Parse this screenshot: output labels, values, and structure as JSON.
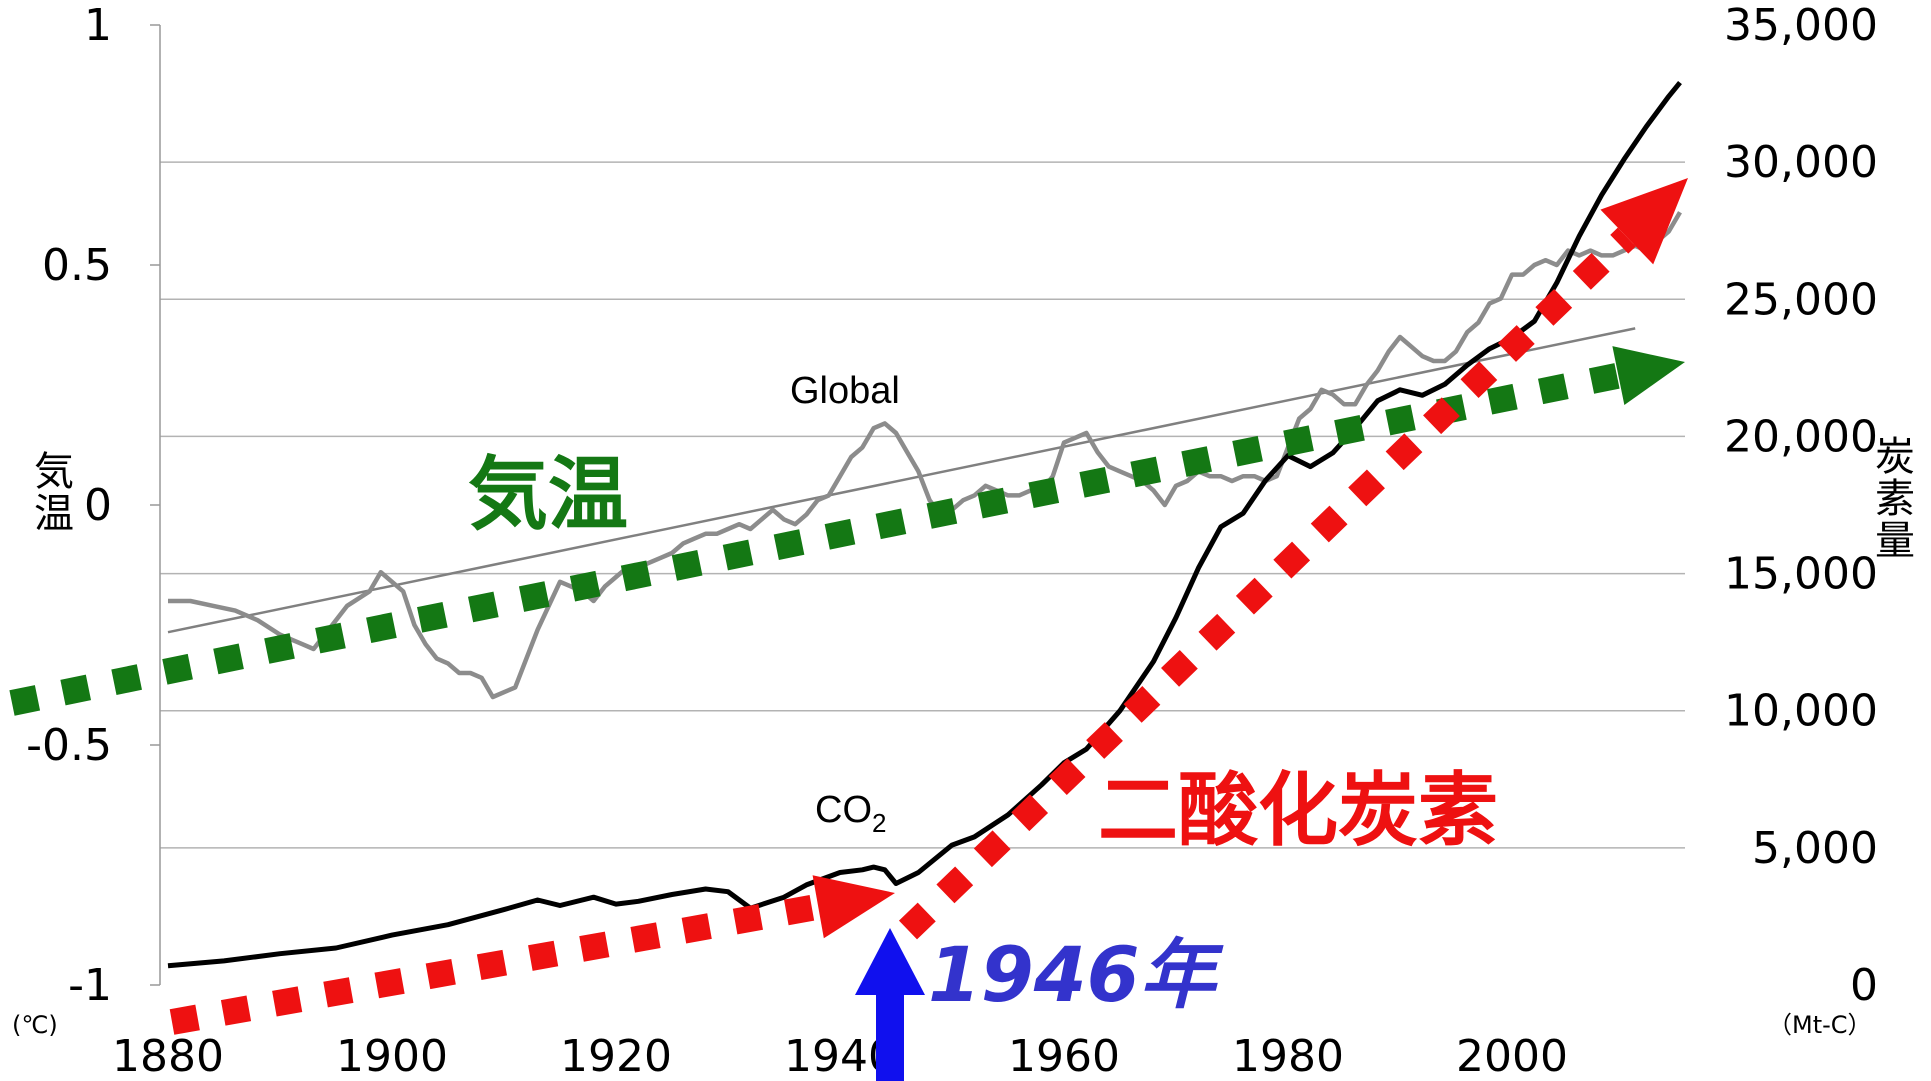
{
  "chart_data": {
    "type": "line",
    "x_range": [
      1880,
      2015
    ],
    "x_ticks": [
      "1880",
      "1900",
      "1920",
      "1940",
      "1960",
      "1980",
      "2000"
    ],
    "y_left": {
      "range": [
        -1,
        1
      ],
      "ticks": [
        "1",
        "0.5",
        "0",
        "-0.5",
        "-1"
      ],
      "label": "気温",
      "unit": "(℃)"
    },
    "y_right": {
      "range": [
        0,
        35000
      ],
      "ticks": [
        "35,000",
        "30,000",
        "25,000",
        "20,000",
        "15,000",
        "10,000",
        "5,000",
        "0"
      ],
      "label": "炭素量",
      "unit": "（Mt-C）"
    },
    "grid": "horizontal",
    "colors": {
      "temperature": "#8c8c8c",
      "trendline": "#808080",
      "co2": "#000000",
      "temp_arrow": "#147814",
      "co2_arrow": "#ee1111",
      "year_arrow": "#1010ee",
      "year_text": "#3333cc"
    },
    "series": [
      {
        "name": "Global",
        "axis": "left",
        "points": [
          [
            1880,
            -0.2
          ],
          [
            1882,
            -0.2
          ],
          [
            1884,
            -0.21
          ],
          [
            1886,
            -0.22
          ],
          [
            1888,
            -0.24
          ],
          [
            1890,
            -0.27
          ],
          [
            1891,
            -0.28
          ],
          [
            1892,
            -0.29
          ],
          [
            1893,
            -0.3
          ],
          [
            1894,
            -0.27
          ],
          [
            1896,
            -0.21
          ],
          [
            1898,
            -0.18
          ],
          [
            1899,
            -0.14
          ],
          [
            1901,
            -0.18
          ],
          [
            1902,
            -0.25
          ],
          [
            1903,
            -0.29
          ],
          [
            1904,
            -0.32
          ],
          [
            1905,
            -0.33
          ],
          [
            1906,
            -0.35
          ],
          [
            1907,
            -0.35
          ],
          [
            1908,
            -0.36
          ],
          [
            1909,
            -0.4
          ],
          [
            1910,
            -0.39
          ],
          [
            1911,
            -0.38
          ],
          [
            1912,
            -0.32
          ],
          [
            1913,
            -0.26
          ],
          [
            1914,
            -0.21
          ],
          [
            1915,
            -0.16
          ],
          [
            1916,
            -0.17
          ],
          [
            1917,
            -0.18
          ],
          [
            1918,
            -0.2
          ],
          [
            1919,
            -0.17
          ],
          [
            1920,
            -0.15
          ],
          [
            1921,
            -0.13
          ],
          [
            1922,
            -0.13
          ],
          [
            1923,
            -0.12
          ],
          [
            1924,
            -0.11
          ],
          [
            1925,
            -0.1
          ],
          [
            1926,
            -0.08
          ],
          [
            1927,
            -0.07
          ],
          [
            1928,
            -0.06
          ],
          [
            1929,
            -0.06
          ],
          [
            1930,
            -0.05
          ],
          [
            1931,
            -0.04
          ],
          [
            1932,
            -0.05
          ],
          [
            1933,
            -0.03
          ],
          [
            1934,
            -0.01
          ],
          [
            1935,
            -0.03
          ],
          [
            1936,
            -0.04
          ],
          [
            1937,
            -0.02
          ],
          [
            1938,
            0.01
          ],
          [
            1939,
            0.02
          ],
          [
            1940,
            0.06
          ],
          [
            1941,
            0.1
          ],
          [
            1942,
            0.12
          ],
          [
            1943,
            0.16
          ],
          [
            1944,
            0.17
          ],
          [
            1945,
            0.15
          ],
          [
            1946,
            0.11
          ],
          [
            1947,
            0.07
          ],
          [
            1948,
            0.01
          ],
          [
            1949,
            -0.02
          ],
          [
            1950,
            -0.01
          ],
          [
            1951,
            0.01
          ],
          [
            1952,
            0.02
          ],
          [
            1953,
            0.04
          ],
          [
            1954,
            0.03
          ],
          [
            1955,
            0.02
          ],
          [
            1956,
            0.02
          ],
          [
            1957,
            0.03
          ],
          [
            1958,
            0.03
          ],
          [
            1959,
            0.06
          ],
          [
            1960,
            0.13
          ],
          [
            1961,
            0.14
          ],
          [
            1962,
            0.15
          ],
          [
            1963,
            0.11
          ],
          [
            1964,
            0.08
          ],
          [
            1965,
            0.07
          ],
          [
            1966,
            0.06
          ],
          [
            1967,
            0.05
          ],
          [
            1968,
            0.03
          ],
          [
            1969,
            0.0
          ],
          [
            1970,
            0.04
          ],
          [
            1971,
            0.05
          ],
          [
            1972,
            0.07
          ],
          [
            1973,
            0.06
          ],
          [
            1974,
            0.06
          ],
          [
            1975,
            0.05
          ],
          [
            1976,
            0.06
          ],
          [
            1977,
            0.06
          ],
          [
            1978,
            0.05
          ],
          [
            1979,
            0.06
          ],
          [
            1980,
            0.12
          ],
          [
            1981,
            0.18
          ],
          [
            1982,
            0.2
          ],
          [
            1983,
            0.24
          ],
          [
            1984,
            0.23
          ],
          [
            1985,
            0.21
          ],
          [
            1986,
            0.21
          ],
          [
            1987,
            0.25
          ],
          [
            1988,
            0.28
          ],
          [
            1989,
            0.32
          ],
          [
            1990,
            0.35
          ],
          [
            1991,
            0.33
          ],
          [
            1992,
            0.31
          ],
          [
            1993,
            0.3
          ],
          [
            1994,
            0.3
          ],
          [
            1995,
            0.32
          ],
          [
            1996,
            0.36
          ],
          [
            1997,
            0.38
          ],
          [
            1998,
            0.42
          ],
          [
            1999,
            0.43
          ],
          [
            2000,
            0.48
          ],
          [
            2001,
            0.48
          ],
          [
            2002,
            0.5
          ],
          [
            2003,
            0.51
          ],
          [
            2004,
            0.5
          ],
          [
            2005,
            0.53
          ],
          [
            2006,
            0.52
          ],
          [
            2007,
            0.53
          ],
          [
            2008,
            0.52
          ],
          [
            2009,
            0.52
          ],
          [
            2010,
            0.53
          ],
          [
            2011,
            0.54
          ],
          [
            2012,
            0.53
          ],
          [
            2013,
            0.55
          ],
          [
            2014,
            0.57
          ],
          [
            2015,
            0.61
          ]
        ]
      },
      {
        "name": "CO2",
        "axis": "right",
        "points": [
          [
            1880,
            700
          ],
          [
            1885,
            880
          ],
          [
            1890,
            1140
          ],
          [
            1895,
            1350
          ],
          [
            1900,
            1820
          ],
          [
            1905,
            2200
          ],
          [
            1910,
            2750
          ],
          [
            1913,
            3100
          ],
          [
            1915,
            2900
          ],
          [
            1918,
            3200
          ],
          [
            1920,
            2950
          ],
          [
            1922,
            3050
          ],
          [
            1925,
            3300
          ],
          [
            1928,
            3500
          ],
          [
            1930,
            3400
          ],
          [
            1932,
            2800
          ],
          [
            1935,
            3200
          ],
          [
            1937,
            3650
          ],
          [
            1940,
            4100
          ],
          [
            1942,
            4200
          ],
          [
            1943,
            4300
          ],
          [
            1944,
            4200
          ],
          [
            1945,
            3700
          ],
          [
            1947,
            4100
          ],
          [
            1950,
            5100
          ],
          [
            1952,
            5400
          ],
          [
            1955,
            6200
          ],
          [
            1958,
            7300
          ],
          [
            1960,
            8100
          ],
          [
            1962,
            8600
          ],
          [
            1965,
            10000
          ],
          [
            1968,
            11800
          ],
          [
            1970,
            13400
          ],
          [
            1972,
            15200
          ],
          [
            1974,
            16700
          ],
          [
            1976,
            17200
          ],
          [
            1978,
            18400
          ],
          [
            1980,
            19300
          ],
          [
            1982,
            18900
          ],
          [
            1984,
            19400
          ],
          [
            1986,
            20300
          ],
          [
            1988,
            21300
          ],
          [
            1990,
            21700
          ],
          [
            1992,
            21500
          ],
          [
            1994,
            21900
          ],
          [
            1996,
            22600
          ],
          [
            1998,
            23200
          ],
          [
            2000,
            23600
          ],
          [
            2002,
            24200
          ],
          [
            2004,
            25600
          ],
          [
            2006,
            27300
          ],
          [
            2008,
            28800
          ],
          [
            2010,
            30100
          ],
          [
            2012,
            31300
          ],
          [
            2014,
            32400
          ],
          [
            2015,
            32900
          ]
        ]
      }
    ],
    "trendline": {
      "axis": "left",
      "points": [
        [
          1880,
          -0.265
        ],
        [
          2011,
          0.368
        ]
      ]
    },
    "annotations": {
      "global_label": "Global",
      "co2_label": "CO",
      "co2_subscript": "2",
      "temp_arrow_label": "気温",
      "co2_arrow_label": "二酸化炭素",
      "year_label": "1946年"
    }
  }
}
